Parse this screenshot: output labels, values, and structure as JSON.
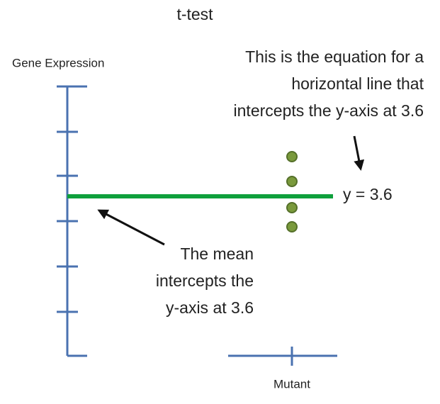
{
  "title": "t-test",
  "y_axis_label": "Gene Expression",
  "x_axis_label": "Mutant",
  "equation": "y = 3.6",
  "equation_note": [
    "This is the equation for a",
    "horizontal line that",
    "intercepts the y-axis at 3.6"
  ],
  "mean_note": [
    "The mean",
    "intercepts the",
    "y-axis at 3.6"
  ]
}
